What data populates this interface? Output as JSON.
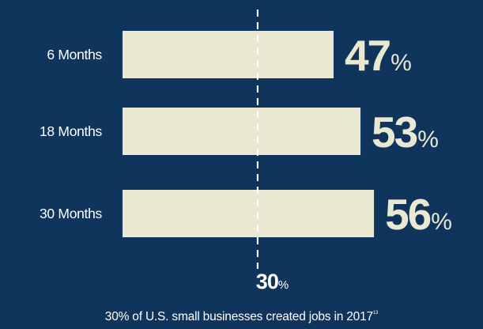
{
  "chart_data": {
    "type": "bar",
    "orientation": "horizontal",
    "categories": [
      "6 Months",
      "18 Months",
      "30 Months"
    ],
    "values": [
      47,
      53,
      56
    ],
    "value_suffix": "%",
    "reference_line": {
      "value": 30,
      "label_value": "30",
      "label_suffix": "%",
      "description": "30% of U.S. small businesses created jobs in 2017",
      "footnote_marker": "13"
    },
    "xlim": [
      0,
      70
    ],
    "colors": {
      "background": "#0f355c",
      "bar": "#ebe8d2",
      "value_text": "#ebe8d2",
      "label_text": "#ffffff",
      "reference_line": "#ffffff"
    }
  }
}
